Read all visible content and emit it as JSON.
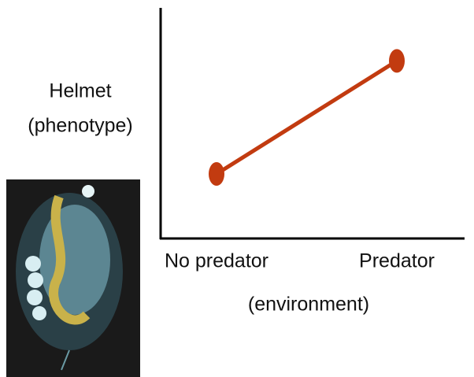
{
  "chart_data": {
    "type": "line",
    "y_label": [
      "Helmet",
      "(phenotype)"
    ],
    "x_label": "(environment)",
    "categories": [
      "No predator",
      "Predator"
    ],
    "values": [
      28,
      77
    ],
    "color": "#c23b10",
    "ylim": [
      0,
      100
    ]
  }
}
